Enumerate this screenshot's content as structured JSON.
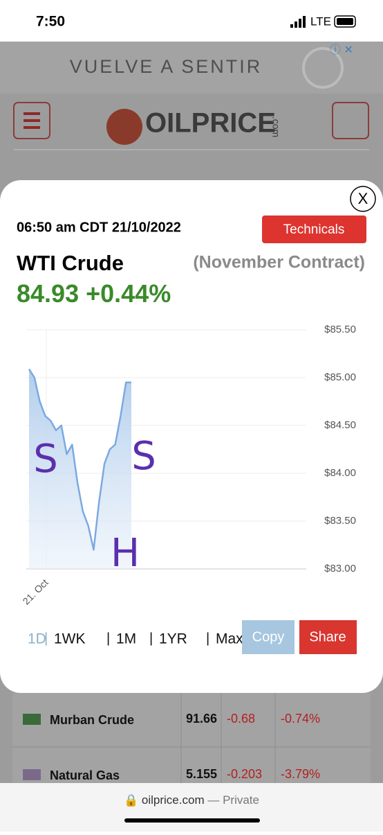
{
  "status_bar": {
    "time": "7:50",
    "network": "LTE"
  },
  "ad": {
    "text": "VUELVE A SENTIR"
  },
  "site": {
    "logo": "OILPRICE",
    "logo_suffix": ".com"
  },
  "modal": {
    "close": "X",
    "timestamp": "06:50 am CDT 21/10/2022",
    "technicals": "Technicals",
    "name": "WTI Crude",
    "contract": "(November Contract)",
    "price": "84.93",
    "change": "+0.44%",
    "ranges": [
      "1D",
      "1WK",
      "1M",
      "1YR",
      "Max"
    ],
    "copy": "Copy",
    "share": "Share"
  },
  "chart_data": {
    "type": "line",
    "categories": [
      "21. Oct",
      null,
      null,
      null,
      null,
      null,
      null,
      null,
      null,
      null,
      null,
      null,
      null,
      null,
      null,
      null,
      null,
      null,
      null,
      null
    ],
    "series": [
      {
        "name": "WTI Crude",
        "color": "#7aaae0",
        "values": [
          85.09,
          85.0,
          84.75,
          84.6,
          84.55,
          84.45,
          84.5,
          84.2,
          84.3,
          83.9,
          83.6,
          83.45,
          83.2,
          83.7,
          84.1,
          84.25,
          84.3,
          84.6,
          84.95,
          84.95
        ]
      }
    ],
    "ylim": [
      83,
      85.5
    ],
    "yticks": [
      {
        "value": 83,
        "label": "$83.00"
      },
      {
        "value": 83.5,
        "label": "$83.50"
      },
      {
        "value": 84,
        "label": "$84.00"
      },
      {
        "value": 84.5,
        "label": "$84.50"
      },
      {
        "value": 85,
        "label": "$85.00"
      },
      {
        "value": 85.5,
        "label": "$85.50"
      }
    ],
    "grid": true,
    "annotations": [
      "S",
      "S",
      "H"
    ]
  },
  "table": {
    "rows": [
      [
        "Murban Crude",
        "91.66",
        "-0.68",
        "-0.74%"
      ],
      [
        "Natural Gas",
        "5.155",
        "-0.203",
        "-3.79%"
      ]
    ]
  },
  "browser": {
    "url": "oilprice.com",
    "mode": "— Private"
  }
}
